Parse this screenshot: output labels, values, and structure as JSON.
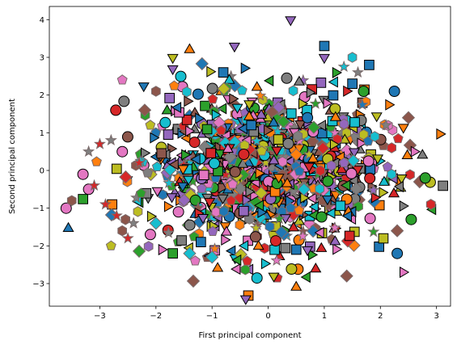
{
  "chart_data": {
    "type": "scatter",
    "title": "",
    "xlabel": "First principal component",
    "ylabel": "Second principal component",
    "xlim": [
      -3.9,
      3.25
    ],
    "ylim": [
      -3.6,
      4.35
    ],
    "xticks": [
      -3,
      -2,
      -1,
      0,
      1,
      2,
      3
    ],
    "yticks": [
      -3,
      -2,
      -1,
      0,
      1,
      2,
      3,
      4
    ],
    "grid": false,
    "legend": "none",
    "colors": [
      "#1f77b4",
      "#ff7f0e",
      "#2ca02c",
      "#d62728",
      "#9467bd",
      "#8c564b",
      "#e377c2",
      "#7f7f7f",
      "#bcbd22",
      "#17becf"
    ],
    "markers": [
      "circle",
      "triangle-up",
      "triangle-down",
      "square",
      "diamond",
      "triangle-left",
      "triangle-right",
      "star",
      "pentagon",
      "hexagon"
    ],
    "series": [
      {
        "color": "#1f77b4",
        "marker": "square",
        "x": [
          -0.8,
          1.0,
          1.8,
          -1.2,
          0.5,
          1.5,
          -0.3
        ],
        "y": [
          2.6,
          3.3,
          2.8,
          -1.9,
          -2.1,
          2.3,
          1.2
        ]
      },
      {
        "color": "#ff7f0e",
        "marker": "triangle-up",
        "x": [
          -1.4,
          0.5,
          -0.2,
          1.2,
          -0.9,
          0.8
        ],
        "y": [
          3.2,
          -3.1,
          2.2,
          1.4,
          -2.6,
          0.3
        ]
      },
      {
        "color": "#9467bd",
        "marker": "triangle-down",
        "x": [
          0.4,
          -0.6,
          1.0,
          -1.7,
          0.7,
          -0.4
        ],
        "y": [
          4.0,
          3.3,
          3.0,
          2.7,
          -2.1,
          -3.4
        ]
      },
      {
        "color": "#e377c2",
        "marker": "circle",
        "x": [
          -3.3,
          -3.6,
          -3.2,
          -2.6,
          -2.1,
          -1.6
        ],
        "y": [
          -0.1,
          -1.0,
          -0.5,
          0.5,
          -1.7,
          -1.1
        ]
      },
      {
        "color": "#d62728",
        "marker": "star",
        "x": [
          -3.0,
          -3.1,
          -2.7,
          -2.3,
          -2.9,
          -2.5
        ],
        "y": [
          0.7,
          -0.4,
          -1.2,
          0.2,
          -0.9,
          -1.8
        ]
      },
      {
        "color": "#7f7f7f",
        "marker": "star",
        "x": [
          -3.2,
          -2.8,
          -2.4,
          1.6,
          2.1
        ],
        "y": [
          0.5,
          0.8,
          -1.4,
          2.6,
          1.2
        ]
      },
      {
        "color": "#8c564b",
        "marker": "diamond",
        "x": [
          2.5,
          2.7,
          2.3,
          1.4,
          -2.2
        ],
        "y": [
          1.4,
          -0.3,
          -1.6,
          -2.8,
          1.6
        ]
      },
      {
        "color": "#8c564b",
        "marker": "hexagon",
        "x": [
          -3.5,
          -2.0,
          -2.6,
          2.9
        ],
        "y": [
          -0.8,
          2.1,
          -1.6,
          -0.9
        ]
      },
      {
        "color": "#17becf",
        "marker": "hexagon",
        "x": [
          1.5,
          1.9,
          2.2
        ],
        "y": [
          3.0,
          0.9,
          -0.1
        ]
      },
      {
        "color": "#17becf",
        "marker": "star",
        "x": [
          1.35
        ],
        "y": [
          2.75
        ]
      },
      {
        "color": "#d62728",
        "marker": "hexagon",
        "x": [
          2.9,
          2.2
        ],
        "y": [
          -0.9,
          0.6
        ]
      },
      {
        "color": "#2ca02c",
        "marker": "circle",
        "x": [
          2.55,
          2.8,
          1.7
        ],
        "y": [
          -1.3,
          -0.2,
          2.1
        ]
      },
      {
        "color": "#1f77b4",
        "marker": "circle",
        "x": [
          2.25,
          2.3,
          0.7
        ],
        "y": [
          2.1,
          -2.2,
          1.4
        ]
      },
      {
        "color": "#7f7f7f",
        "marker": "triangle-up",
        "x": [
          2.75
        ],
        "y": [
          0.4
        ]
      },
      {
        "color": "#bcbd22",
        "marker": "pentagon",
        "x": [
          -2.8,
          -2.1
        ],
        "y": [
          -2.0,
          1.2
        ]
      },
      {
        "color": "#e377c2",
        "marker": "pentagon",
        "x": [
          -2.6,
          -1.3
        ],
        "y": [
          2.4,
          -2.4
        ]
      },
      {
        "color": "#bcbd22",
        "marker": "triangle-down",
        "x": [
          -1.7,
          0.1
        ],
        "y": [
          3.0,
          -2.8
        ]
      },
      {
        "color": "#e377c2",
        "marker": "triangle-right",
        "x": [
          2.6,
          2.4,
          -1.9
        ],
        "y": [
          0.5,
          -2.7,
          -2.1
        ]
      },
      {
        "color": "#2ca02c",
        "marker": "square",
        "x": [
          -1.7
        ],
        "y": [
          -2.2
        ]
      },
      {
        "color": "#17becf",
        "marker": "diamond",
        "x": [
          -1.0,
          -1.4,
          -2.0
        ],
        "y": [
          -2.3,
          -2.2,
          -1.4
        ]
      }
    ],
    "dense_cloud": {
      "note": "",
      "n_points": 1200,
      "x_center": 0.0,
      "y_center": 0.0,
      "x_spread": 1.05,
      "y_spread": 1.0
    }
  }
}
